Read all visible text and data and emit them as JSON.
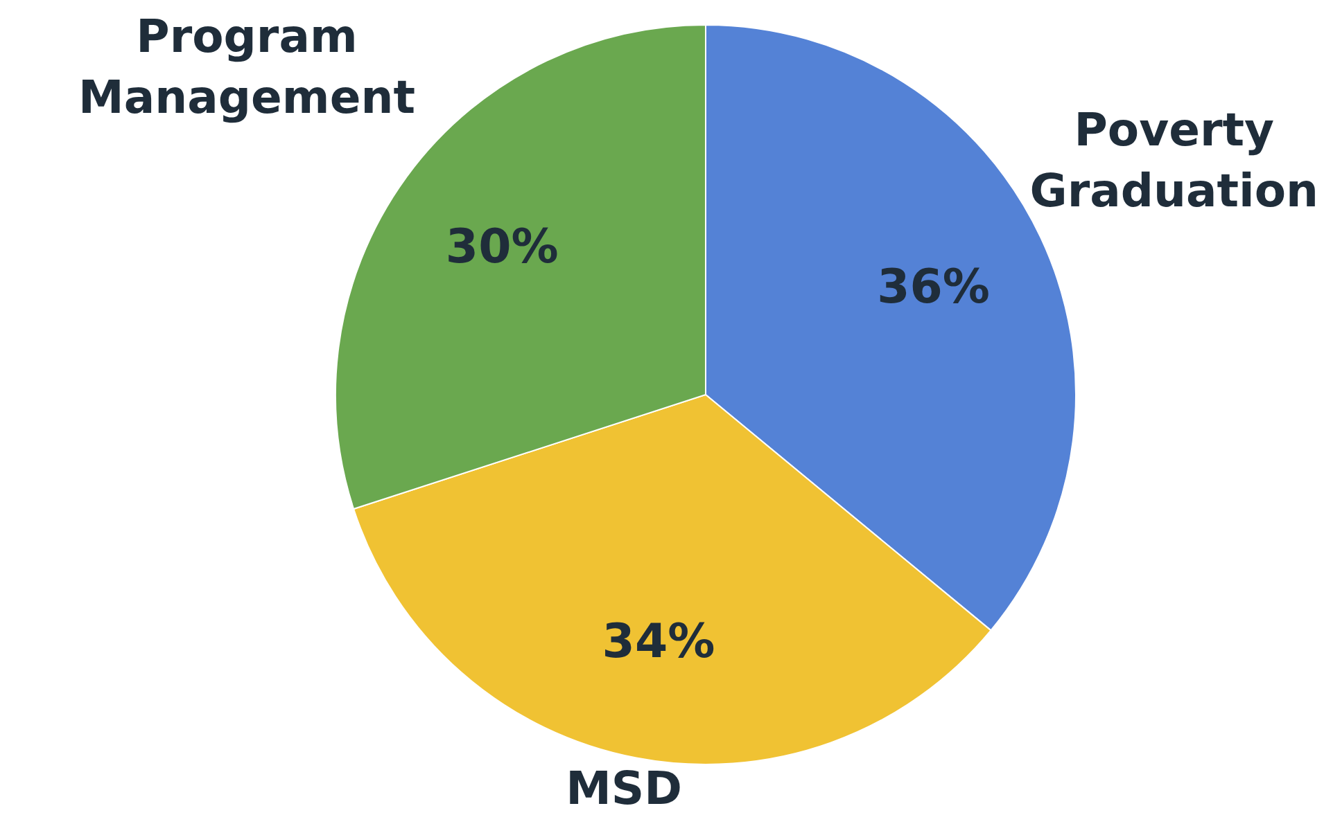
{
  "chart_data": {
    "type": "pie",
    "categories": [
      "Poverty Graduation",
      "MSD",
      "Program Management"
    ],
    "values": [
      36,
      34,
      30
    ],
    "colors": [
      "#5482d6",
      "#f0c233",
      "#6aa84f"
    ],
    "value_labels": [
      "36%",
      "34%",
      "30%"
    ]
  }
}
